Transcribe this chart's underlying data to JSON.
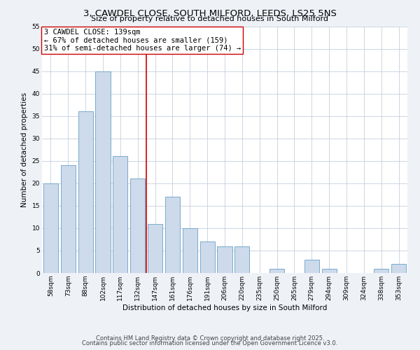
{
  "title": "3, CAWDEL CLOSE, SOUTH MILFORD, LEEDS, LS25 5NS",
  "subtitle": "Size of property relative to detached houses in South Milford",
  "xlabel": "Distribution of detached houses by size in South Milford",
  "ylabel": "Number of detached properties",
  "bar_color": "#ccdaeb",
  "bar_edge_color": "#7aaacb",
  "categories": [
    "58sqm",
    "73sqm",
    "88sqm",
    "102sqm",
    "117sqm",
    "132sqm",
    "147sqm",
    "161sqm",
    "176sqm",
    "191sqm",
    "206sqm",
    "220sqm",
    "235sqm",
    "250sqm",
    "265sqm",
    "279sqm",
    "294sqm",
    "309sqm",
    "324sqm",
    "338sqm",
    "353sqm"
  ],
  "values": [
    20,
    24,
    36,
    45,
    26,
    21,
    11,
    17,
    10,
    7,
    6,
    6,
    0,
    1,
    0,
    3,
    1,
    0,
    0,
    1,
    2
  ],
  "ylim": [
    0,
    55
  ],
  "yticks": [
    0,
    5,
    10,
    15,
    20,
    25,
    30,
    35,
    40,
    45,
    50,
    55
  ],
  "vline_x": 5.5,
  "vline_color": "#cc0000",
  "annotation_line1": "3 CAWDEL CLOSE: 139sqm",
  "annotation_line2": "← 67% of detached houses are smaller (159)",
  "annotation_line3": "31% of semi-detached houses are larger (74) →",
  "footer_line1": "Contains HM Land Registry data © Crown copyright and database right 2025.",
  "footer_line2": "Contains public sector information licensed under the Open Government Licence v3.0.",
  "bg_color": "#eef2f7",
  "plot_bg_color": "#ffffff",
  "grid_color": "#c5d0dc",
  "title_fontsize": 9.5,
  "subtitle_fontsize": 8,
  "axis_label_fontsize": 7.5,
  "tick_fontsize": 6.5,
  "annotation_fontsize": 7.5,
  "footer_fontsize": 6
}
